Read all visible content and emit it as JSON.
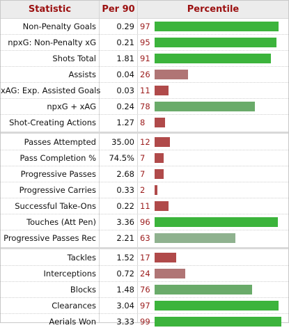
{
  "header": {
    "statistic": "Statistic",
    "per90": "Per 90",
    "percentile": "Percentile"
  },
  "colors": {
    "high": "#3cb43c",
    "mid_high": "#6aab6a",
    "mid": "#8fb28f",
    "mid_low": "#b07575",
    "low": "#b04a4a",
    "percentile_text": "#9b1b1b",
    "header_text": "#9b0f0f"
  },
  "chart_data": {
    "type": "bar",
    "xlim": [
      0,
      100
    ],
    "groups": [
      {
        "rows": [
          {
            "label": "Non-Penalty Goals",
            "per90": "0.29",
            "percentile": 97
          },
          {
            "label": "npxG: Non-Penalty xG",
            "per90": "0.21",
            "percentile": 95
          },
          {
            "label": "Shots Total",
            "per90": "1.81",
            "percentile": 91
          },
          {
            "label": "Assists",
            "per90": "0.04",
            "percentile": 26
          },
          {
            "label": "xAG: Exp. Assisted Goals",
            "per90": "0.03",
            "percentile": 11
          },
          {
            "label": "npxG + xAG",
            "per90": "0.24",
            "percentile": 78
          },
          {
            "label": "Shot-Creating Actions",
            "per90": "1.27",
            "percentile": 8
          }
        ]
      },
      {
        "rows": [
          {
            "label": "Passes Attempted",
            "per90": "35.00",
            "percentile": 12
          },
          {
            "label": "Pass Completion %",
            "per90": "74.5%",
            "percentile": 7
          },
          {
            "label": "Progressive Passes",
            "per90": "2.68",
            "percentile": 7
          },
          {
            "label": "Progressive Carries",
            "per90": "0.33",
            "percentile": 2
          },
          {
            "label": "Successful Take-Ons",
            "per90": "0.22",
            "percentile": 11
          },
          {
            "label": "Touches (Att Pen)",
            "per90": "3.36",
            "percentile": 96
          },
          {
            "label": "Progressive Passes Rec",
            "per90": "2.21",
            "percentile": 63
          }
        ]
      },
      {
        "rows": [
          {
            "label": "Tackles",
            "per90": "1.52",
            "percentile": 17
          },
          {
            "label": "Interceptions",
            "per90": "0.72",
            "percentile": 24
          },
          {
            "label": "Blocks",
            "per90": "1.48",
            "percentile": 76
          },
          {
            "label": "Clearances",
            "per90": "3.04",
            "percentile": 97
          },
          {
            "label": "Aerials Won",
            "per90": "3.33",
            "percentile": 99
          }
        ]
      }
    ]
  }
}
